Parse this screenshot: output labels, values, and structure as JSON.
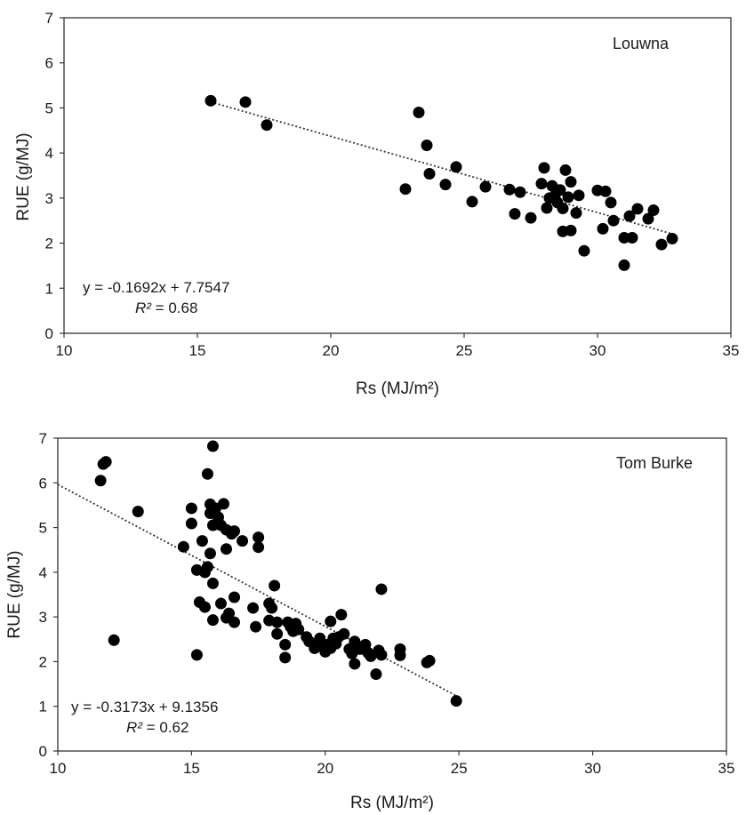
{
  "chart_data": [
    {
      "type": "scatter",
      "site_label": "Louwna",
      "xlabel": "Rs (MJ/m²)",
      "ylabel": "RUE (g/MJ)",
      "xlim": [
        10,
        35
      ],
      "ylim": [
        0,
        7
      ],
      "x_ticks": [
        "10",
        "15",
        "20",
        "25",
        "30",
        "35"
      ],
      "y_ticks": [
        "0",
        "1",
        "2",
        "3",
        "4",
        "5",
        "6",
        "7"
      ],
      "grid": false,
      "equation": "y = -0.1692x + 7.7547",
      "r2_symbol": "R²",
      "r2_value": " = 0.68",
      "trendline": {
        "slope": -0.1692,
        "intercept": 7.7547,
        "x_range": [
          15.5,
          32.8
        ]
      },
      "points": [
        [
          15.5,
          5.16
        ],
        [
          16.8,
          5.13
        ],
        [
          17.6,
          4.62
        ],
        [
          22.8,
          3.2
        ],
        [
          23.3,
          4.9
        ],
        [
          23.6,
          4.17
        ],
        [
          23.7,
          3.54
        ],
        [
          24.3,
          3.3
        ],
        [
          24.7,
          3.69
        ],
        [
          25.3,
          2.92
        ],
        [
          25.8,
          3.25
        ],
        [
          26.7,
          3.19
        ],
        [
          26.9,
          2.65
        ],
        [
          27.1,
          3.13
        ],
        [
          27.5,
          2.56
        ],
        [
          27.9,
          3.32
        ],
        [
          28.0,
          3.67
        ],
        [
          28.1,
          2.78
        ],
        [
          28.2,
          3.0
        ],
        [
          28.3,
          3.27
        ],
        [
          28.4,
          3.05
        ],
        [
          28.5,
          2.9
        ],
        [
          28.6,
          3.18
        ],
        [
          28.7,
          2.77
        ],
        [
          28.7,
          2.26
        ],
        [
          28.8,
          3.62
        ],
        [
          28.9,
          3.02
        ],
        [
          29.0,
          3.36
        ],
        [
          29.0,
          2.28
        ],
        [
          29.2,
          2.67
        ],
        [
          29.3,
          3.06
        ],
        [
          29.5,
          1.83
        ],
        [
          30.0,
          3.17
        ],
        [
          30.2,
          2.32
        ],
        [
          30.3,
          3.15
        ],
        [
          30.5,
          2.9
        ],
        [
          30.6,
          2.5
        ],
        [
          31.0,
          2.12
        ],
        [
          31.0,
          1.51
        ],
        [
          31.2,
          2.6
        ],
        [
          31.3,
          2.12
        ],
        [
          31.5,
          2.76
        ],
        [
          31.9,
          2.54
        ],
        [
          32.1,
          2.73
        ],
        [
          32.4,
          1.97
        ],
        [
          32.8,
          2.1
        ]
      ]
    },
    {
      "type": "scatter",
      "site_label": "Tom Burke",
      "xlabel": "Rs (MJ/m²)",
      "ylabel": "RUE (g/MJ)",
      "xlim": [
        10,
        35
      ],
      "ylim": [
        0,
        7
      ],
      "x_ticks": [
        "10",
        "15",
        "20",
        "25",
        "30",
        "35"
      ],
      "y_ticks": [
        "0",
        "1",
        "2",
        "3",
        "4",
        "5",
        "6",
        "7"
      ],
      "grid": false,
      "equation": "y = -0.3173x + 9.1356",
      "r2_symbol": "R²",
      "r2_value": " = 0.62",
      "trendline": {
        "slope": -0.3173,
        "intercept": 9.1356,
        "x_range": [
          10.0,
          24.9
        ]
      },
      "points": [
        [
          11.6,
          6.05
        ],
        [
          11.7,
          6.42
        ],
        [
          11.8,
          6.47
        ],
        [
          12.1,
          2.48
        ],
        [
          13.0,
          5.36
        ],
        [
          14.7,
          4.57
        ],
        [
          15.0,
          5.43
        ],
        [
          15.0,
          5.09
        ],
        [
          15.2,
          4.05
        ],
        [
          15.2,
          2.15
        ],
        [
          15.3,
          3.33
        ],
        [
          15.4,
          4.7
        ],
        [
          15.5,
          3.22
        ],
        [
          15.5,
          4.0
        ],
        [
          15.6,
          4.12
        ],
        [
          15.6,
          6.2
        ],
        [
          15.7,
          5.52
        ],
        [
          15.7,
          5.32
        ],
        [
          15.7,
          4.42
        ],
        [
          15.8,
          5.05
        ],
        [
          15.8,
          3.75
        ],
        [
          15.8,
          2.93
        ],
        [
          15.8,
          6.82
        ],
        [
          15.9,
          5.43
        ],
        [
          16.0,
          5.23
        ],
        [
          16.1,
          5.05
        ],
        [
          16.1,
          3.3
        ],
        [
          16.2,
          5.53
        ],
        [
          16.3,
          4.95
        ],
        [
          16.3,
          4.52
        ],
        [
          16.3,
          2.98
        ],
        [
          16.4,
          3.08
        ],
        [
          16.5,
          4.86
        ],
        [
          16.6,
          4.92
        ],
        [
          16.6,
          3.44
        ],
        [
          16.6,
          2.88
        ],
        [
          16.9,
          4.7
        ],
        [
          17.3,
          3.2
        ],
        [
          17.4,
          2.78
        ],
        [
          17.5,
          4.78
        ],
        [
          17.5,
          4.56
        ],
        [
          17.9,
          3.3
        ],
        [
          17.9,
          2.92
        ],
        [
          18.0,
          3.2
        ],
        [
          18.1,
          3.7
        ],
        [
          18.2,
          2.88
        ],
        [
          18.2,
          2.62
        ],
        [
          18.5,
          2.38
        ],
        [
          18.5,
          2.09
        ],
        [
          18.6,
          2.88
        ],
        [
          18.7,
          2.78
        ],
        [
          18.8,
          2.68
        ],
        [
          18.9,
          2.85
        ],
        [
          19.0,
          2.72
        ],
        [
          19.3,
          2.55
        ],
        [
          19.4,
          2.45
        ],
        [
          19.6,
          2.3
        ],
        [
          19.7,
          2.38
        ],
        [
          19.8,
          2.52
        ],
        [
          20.0,
          2.22
        ],
        [
          20.1,
          2.38
        ],
        [
          20.2,
          2.9
        ],
        [
          20.2,
          2.3
        ],
        [
          20.3,
          2.52
        ],
        [
          20.4,
          2.4
        ],
        [
          20.5,
          2.55
        ],
        [
          20.6,
          3.05
        ],
        [
          20.7,
          2.62
        ],
        [
          20.9,
          2.28
        ],
        [
          21.0,
          2.18
        ],
        [
          21.1,
          2.45
        ],
        [
          21.1,
          1.95
        ],
        [
          21.3,
          2.28
        ],
        [
          21.5,
          2.38
        ],
        [
          21.6,
          2.2
        ],
        [
          21.7,
          2.12
        ],
        [
          21.9,
          1.72
        ],
        [
          22.0,
          2.25
        ],
        [
          22.1,
          2.15
        ],
        [
          22.1,
          3.62
        ],
        [
          22.8,
          2.28
        ],
        [
          22.8,
          2.14
        ],
        [
          23.8,
          1.98
        ],
        [
          23.9,
          2.02
        ],
        [
          24.9,
          1.12
        ]
      ]
    }
  ]
}
